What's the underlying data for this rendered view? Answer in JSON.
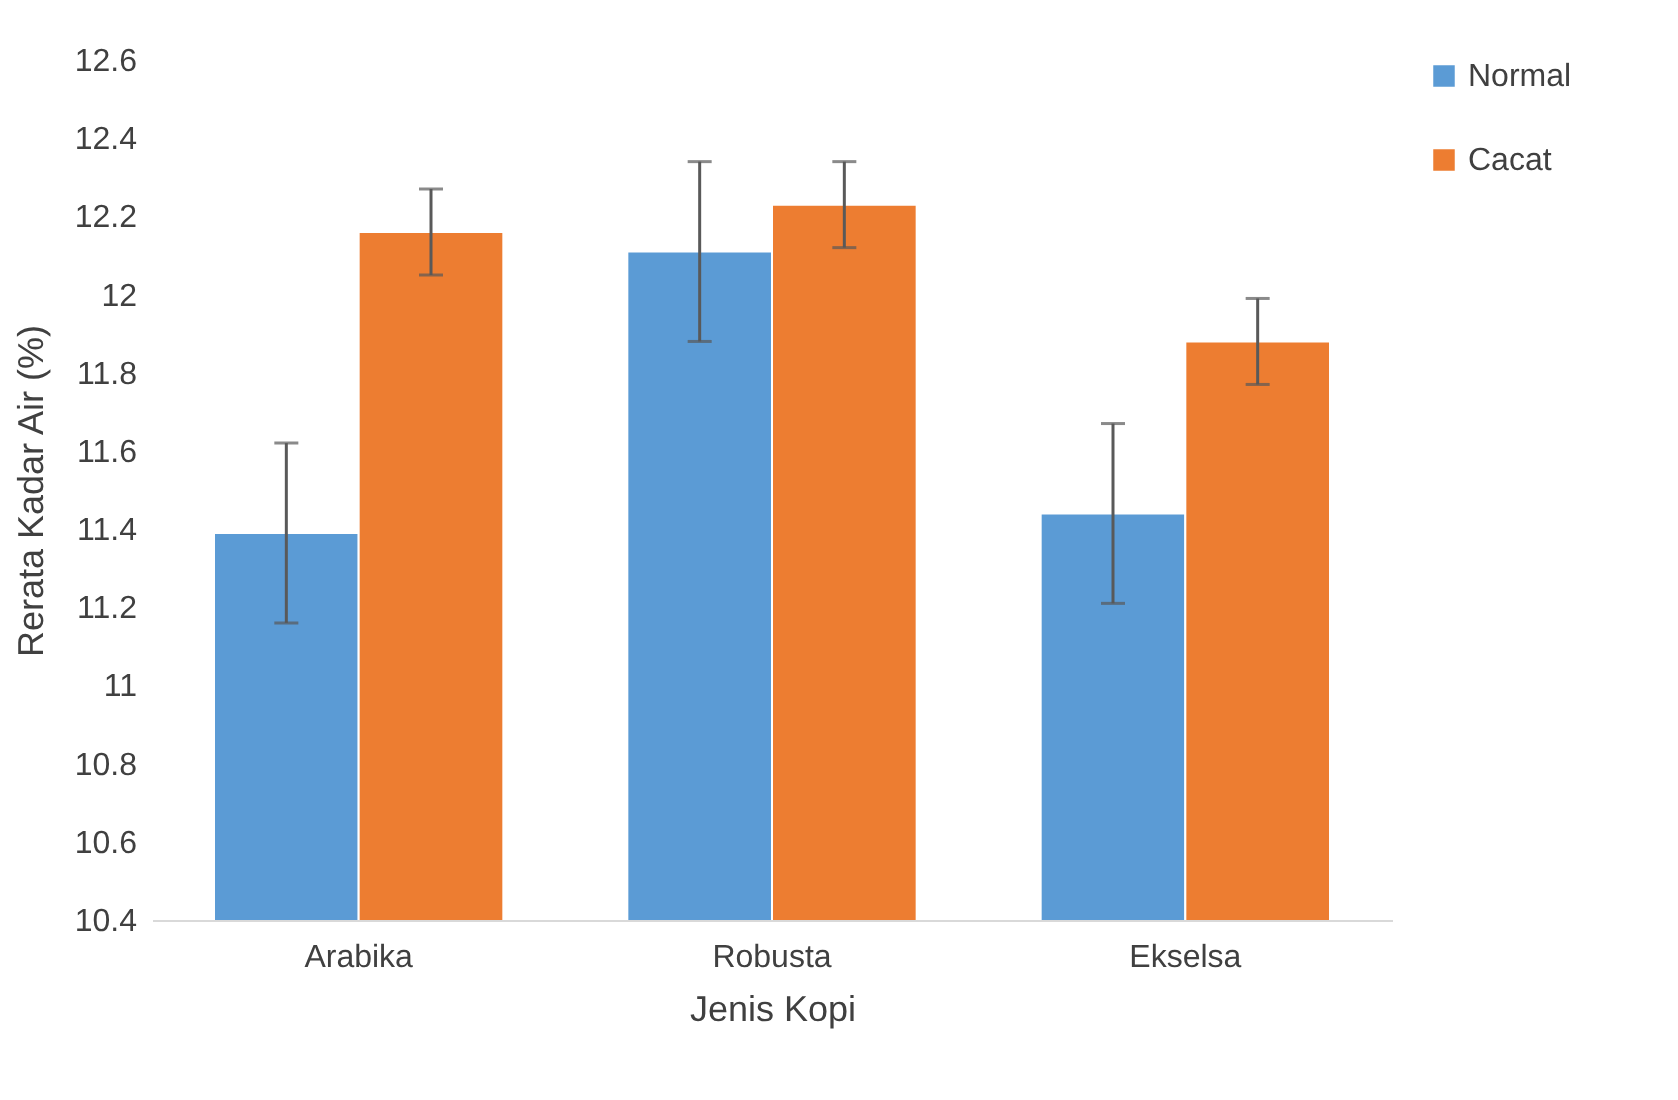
{
  "chart_data": {
    "type": "bar",
    "xlabel": "Jenis Kopi",
    "ylabel": "Rerata Kadar Air (%)",
    "categories": [
      "Arabika",
      "Robusta",
      "Ekselsa"
    ],
    "series": [
      {
        "name": "Normal",
        "color": "#5b9bd5",
        "values": [
          11.39,
          12.11,
          11.44
        ],
        "errors": [
          0.23,
          0.23,
          0.23
        ]
      },
      {
        "name": "Cacat",
        "color": "#ed7d31",
        "values": [
          12.16,
          12.23,
          11.88
        ],
        "errors": [
          0.11,
          0.11,
          0.11
        ]
      }
    ],
    "ylim": [
      10.4,
      12.6
    ],
    "yticks": [
      10.4,
      10.6,
      10.8,
      11,
      11.2,
      11.4,
      11.6,
      11.8,
      12,
      12.2,
      12.4,
      12.6
    ],
    "legend": "right"
  }
}
